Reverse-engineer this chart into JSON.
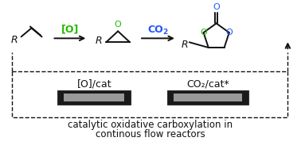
{
  "bg_color": "#ffffff",
  "green_color": "#22bb00",
  "blue_color": "#2255ff",
  "black_color": "#111111",
  "label_O": "[O]",
  "label_CO2_top": "CO",
  "label_CO2_sub": "2",
  "label_O_cat": "[O]/cat",
  "label_CO2_cat": "CO₂/cat*",
  "bottom_text_line1": "catalytic oxidative carboxylation in",
  "bottom_text_line2": "continous flow reactors",
  "fs": 9.0,
  "fs_small": 8.5,
  "fs_subscript": 6.5,
  "lw": 1.4
}
